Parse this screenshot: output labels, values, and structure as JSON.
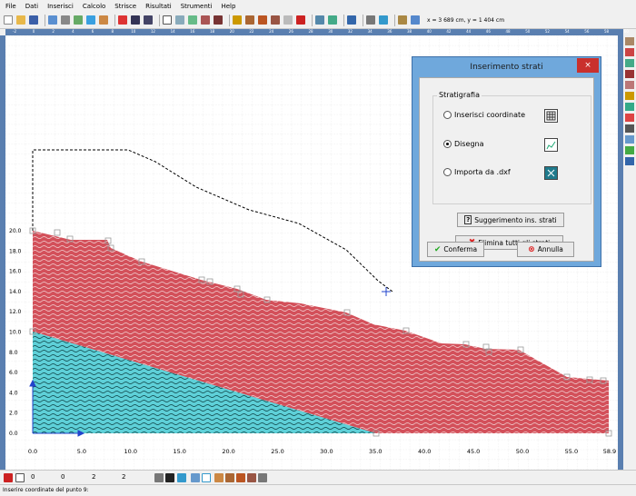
{
  "menu": [
    "File",
    "Dati",
    "Inserisci",
    "Calcolo",
    "Strisce",
    "Risultati",
    "Strumenti",
    "Help"
  ],
  "toolbar": {
    "coords": "x = 3 689 cm, y = 1 404 cm"
  },
  "ruler_top_ticks": [
    "-2",
    "0",
    "2",
    "4",
    "6",
    "8",
    "10",
    "12",
    "14",
    "16",
    "18",
    "20",
    "22",
    "24",
    "26",
    "28",
    "30",
    "32",
    "34",
    "36",
    "38",
    "40",
    "42",
    "44",
    "46",
    "48",
    "50",
    "52",
    "54",
    "56",
    "58",
    "60"
  ],
  "axis": {
    "x_ticks": [
      "0.0",
      "5.0",
      "10.0",
      "15.0",
      "20.0",
      "25.0",
      "30.0",
      "35.0",
      "40.0",
      "45.0",
      "50.0",
      "55.0",
      "58.9"
    ],
    "y_ticks": [
      "20.0",
      "18.0",
      "16.0",
      "14.0",
      "12.0",
      "10.0",
      "8.0",
      "6.0",
      "4.0",
      "2.0",
      "0.0"
    ]
  },
  "dialog": {
    "title": "Inserimento strati",
    "close": "×",
    "group_title": "Stratigrafia",
    "options": [
      "Inserisci coordinate",
      "Disegna",
      "Importa da .dxf"
    ],
    "selected": "Disegna",
    "suggest_button": "Suggerimento ins. strati",
    "delete_button": "Elimina tutti gli strati",
    "confirm_button": "Conferma",
    "cancel_button": "Annulla"
  },
  "bottombar": {
    "field1": "0",
    "field2": "0",
    "field3": "2",
    "field4": "2"
  },
  "status": "Inserire coordinate del punto 9:",
  "colors": {
    "layer_top": "#d3505a",
    "layer_bottom": "#5ed0d8",
    "ruler": "#5a7fb0",
    "dialog_frame": "#6fa8dc"
  }
}
